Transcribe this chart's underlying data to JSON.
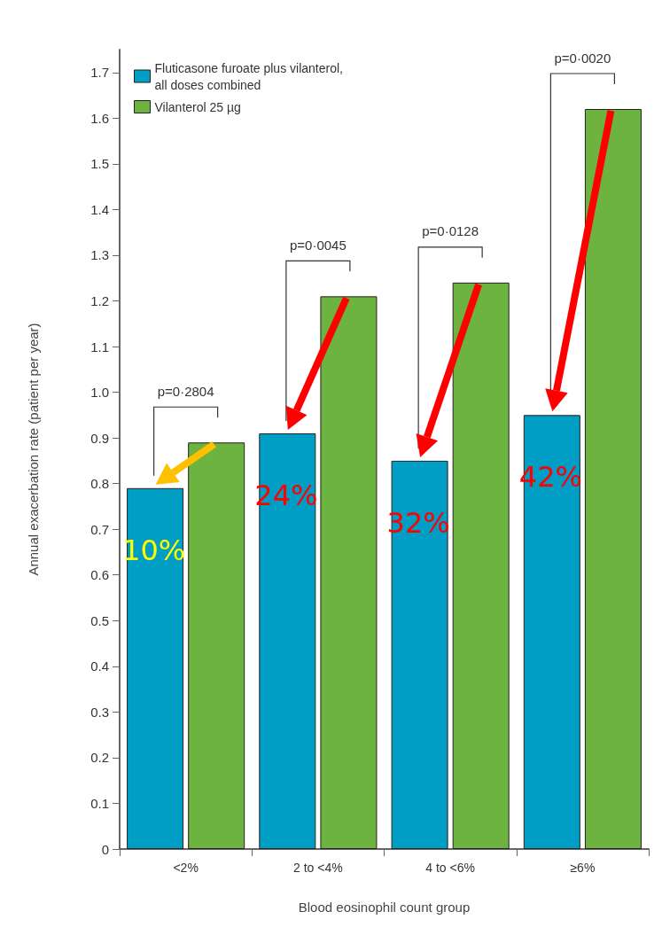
{
  "chart_data": {
    "type": "bar",
    "xlabel": "Blood eosinophil count group",
    "ylabel": "Annual exacerbation rate (patient per year)",
    "categories": [
      "<2%",
      "2 to <4%",
      "4 to <6%",
      "≥6%"
    ],
    "series": [
      {
        "name": "Fluticasone furoate plus vilanterol, all doses combined",
        "color": "#009dc4",
        "values": [
          0.79,
          0.91,
          0.85,
          0.95
        ]
      },
      {
        "name": "Vilanterol 25 µg",
        "color": "#6db33f",
        "values": [
          0.89,
          1.21,
          1.24,
          1.62
        ]
      }
    ],
    "ylim": [
      0,
      1.75
    ],
    "yticks": [
      0,
      0.1,
      0.2,
      0.3,
      0.4,
      0.5,
      0.6,
      0.7,
      0.8,
      0.9,
      {
        "value": 1,
        "label": "1.0"
      },
      1.1,
      1.2,
      1.3,
      1.4,
      1.5,
      1.6,
      1.7
    ],
    "grid": false,
    "legend": "top left",
    "annotations": [
      "p=0·2804",
      "p=0·0045",
      "p=0·0128",
      "p=0·0020",
      "10%",
      "24%",
      "32%",
      "42%"
    ]
  }
}
